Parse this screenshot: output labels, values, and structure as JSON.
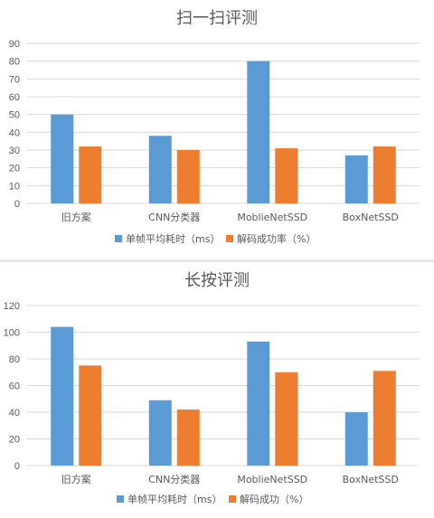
{
  "chart_data": [
    {
      "type": "bar",
      "title": "扫一扫评测",
      "categories": [
        "旧方案",
        "CNN分类器",
        "MoblieNetSSD",
        "BoxNetSSD"
      ],
      "series": [
        {
          "name": "单帧平均耗时（ms）",
          "color": "#5b9bd5",
          "values": [
            50,
            38,
            80,
            27
          ]
        },
        {
          "name": "解码成功率（%）",
          "color": "#ed7d31",
          "values": [
            32,
            30,
            31,
            32
          ]
        }
      ],
      "yticks": [
        "0",
        "10",
        "20",
        "30",
        "40",
        "50",
        "60",
        "70",
        "80",
        "90"
      ],
      "ylim": [
        0,
        90
      ],
      "legend_position": "bottom",
      "grid": true
    },
    {
      "type": "bar",
      "title": "长按评测",
      "categories": [
        "旧方案",
        "CNN分类器",
        "MoblieNetSSD",
        "BoxNetSSD"
      ],
      "series": [
        {
          "name": "单帧平均耗时（ms）",
          "color": "#5b9bd5",
          "values": [
            104,
            49,
            93,
            40
          ]
        },
        {
          "name": "解码成功（%）",
          "color": "#ed7d31",
          "values": [
            75,
            42,
            70,
            71
          ]
        }
      ],
      "yticks": [
        "0",
        "20",
        "40",
        "60",
        "80",
        "100",
        "120"
      ],
      "ylim": [
        0,
        120
      ],
      "legend_position": "bottom",
      "grid": true
    }
  ]
}
